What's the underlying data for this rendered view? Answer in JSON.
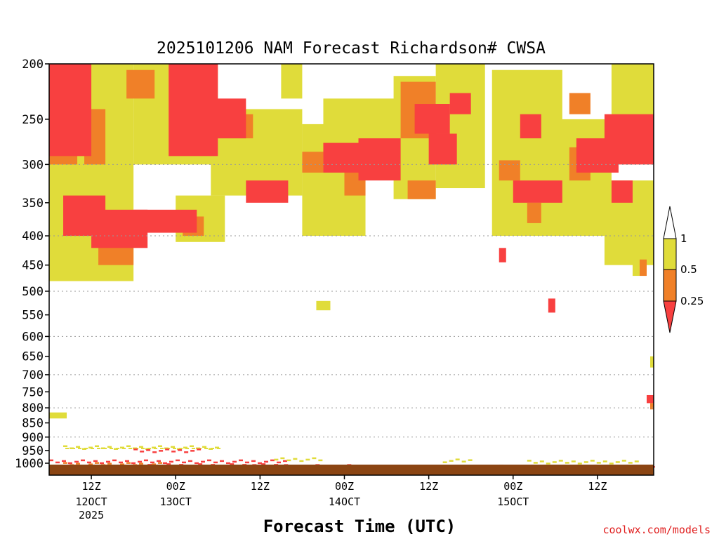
{
  "chart_data": {
    "type": "heatmap",
    "title": "2025101206 NAM Forecast Richardson# CWSA",
    "xlabel": "Forecast Time (UTC)",
    "ylabel": "",
    "y_axis": {
      "scale": "pressure",
      "reversed": true,
      "range": [
        1000,
        200
      ],
      "ticks": [
        200,
        250,
        300,
        350,
        400,
        450,
        500,
        550,
        600,
        650,
        700,
        750,
        800,
        850,
        900,
        950,
        1000
      ]
    },
    "x_ticks": [
      {
        "label": "12Z",
        "sub": [
          "12OCT",
          "2025"
        ],
        "hour": 12
      },
      {
        "label": "00Z",
        "sub": [
          "13OCT"
        ],
        "hour": 24
      },
      {
        "label": "12Z",
        "sub": [],
        "hour": 36
      },
      {
        "label": "00Z",
        "sub": [
          "14OCT"
        ],
        "hour": 48
      },
      {
        "label": "12Z",
        "sub": [],
        "hour": 60
      },
      {
        "label": "00Z",
        "sub": [
          "15OCT"
        ],
        "hour": 72
      },
      {
        "label": "12Z",
        "sub": [],
        "hour": 84
      }
    ],
    "x_range_hours": [
      6,
      92
    ],
    "grid": {
      "horizontal_dotted": [
        300,
        400,
        500,
        600,
        700,
        800,
        900
      ]
    },
    "legend": {
      "placement": "right",
      "labels": [
        "1",
        "0.5",
        "0.25"
      ],
      "bins": [
        {
          "range": "> 1",
          "color": "#ffffff"
        },
        {
          "range": "0.5 – 1",
          "color": "#e0dc3a"
        },
        {
          "range": "0.25 – 0.5",
          "color": "#f08028"
        },
        {
          "range": "< 0.25",
          "color": "#f84040"
        }
      ]
    },
    "colors": {
      "low": "#f84040",
      "mid": "#f08028",
      "high": "#e0dc3a",
      "ground": "#8b4513"
    },
    "regions": [
      {
        "bin": "high",
        "t": [
          6,
          18
        ],
        "p": [
          200,
          480
        ]
      },
      {
        "bin": "high",
        "t": [
          18,
          30
        ],
        "p": [
          200,
          300
        ]
      },
      {
        "bin": "high",
        "t": [
          24,
          31
        ],
        "p": [
          340,
          410
        ]
      },
      {
        "bin": "high",
        "t": [
          29,
          42
        ],
        "p": [
          240,
          340
        ]
      },
      {
        "bin": "high",
        "t": [
          39,
          42
        ],
        "p": [
          200,
          230
        ]
      },
      {
        "bin": "high",
        "t": [
          42,
          51
        ],
        "p": [
          255,
          400
        ]
      },
      {
        "bin": "high",
        "t": [
          45,
          56
        ],
        "p": [
          230,
          310
        ]
      },
      {
        "bin": "high",
        "t": [
          55,
          61
        ],
        "p": [
          210,
          345
        ]
      },
      {
        "bin": "high",
        "t": [
          61,
          68
        ],
        "p": [
          200,
          330
        ]
      },
      {
        "bin": "high",
        "t": [
          69,
          79
        ],
        "p": [
          205,
          400
        ]
      },
      {
        "bin": "high",
        "t": [
          78,
          86
        ],
        "p": [
          250,
          400
        ]
      },
      {
        "bin": "high",
        "t": [
          86,
          92
        ],
        "p": [
          200,
          250
        ]
      },
      {
        "bin": "high",
        "t": [
          85,
          92
        ],
        "p": [
          320,
          450
        ]
      },
      {
        "bin": "mid",
        "t": [
          6,
          10
        ],
        "p": [
          225,
          300
        ]
      },
      {
        "bin": "mid",
        "t": [
          11,
          14
        ],
        "p": [
          240,
          300
        ]
      },
      {
        "bin": "mid",
        "t": [
          13,
          18
        ],
        "p": [
          380,
          450
        ]
      },
      {
        "bin": "mid",
        "t": [
          17,
          21
        ],
        "p": [
          205,
          230
        ]
      },
      {
        "bin": "mid",
        "t": [
          25,
          28
        ],
        "p": [
          370,
          400
        ]
      },
      {
        "bin": "mid",
        "t": [
          30,
          35
        ],
        "p": [
          245,
          270
        ]
      },
      {
        "bin": "mid",
        "t": [
          42,
          45
        ],
        "p": [
          285,
          310
        ]
      },
      {
        "bin": "mid",
        "t": [
          48,
          51
        ],
        "p": [
          300,
          340
        ]
      },
      {
        "bin": "mid",
        "t": [
          56,
          61
        ],
        "p": [
          215,
          270
        ]
      },
      {
        "bin": "mid",
        "t": [
          57,
          61
        ],
        "p": [
          320,
          345
        ]
      },
      {
        "bin": "mid",
        "t": [
          70,
          73
        ],
        "p": [
          295,
          320
        ]
      },
      {
        "bin": "mid",
        "t": [
          74,
          76
        ],
        "p": [
          350,
          380
        ]
      },
      {
        "bin": "mid",
        "t": [
          80,
          83
        ],
        "p": [
          225,
          245
        ]
      },
      {
        "bin": "mid",
        "t": [
          80,
          83
        ],
        "p": [
          280,
          320
        ]
      },
      {
        "bin": "mid",
        "t": [
          88,
          90
        ],
        "p": [
          250,
          275
        ]
      },
      {
        "bin": "low",
        "t": [
          6,
          12
        ],
        "p": [
          200,
          290
        ]
      },
      {
        "bin": "low",
        "t": [
          8,
          14
        ],
        "p": [
          340,
          400
        ]
      },
      {
        "bin": "low",
        "t": [
          12,
          20
        ],
        "p": [
          360,
          420
        ]
      },
      {
        "bin": "low",
        "t": [
          18,
          27
        ],
        "p": [
          360,
          395
        ]
      },
      {
        "bin": "low",
        "t": [
          23,
          30
        ],
        "p": [
          200,
          290
        ]
      },
      {
        "bin": "low",
        "t": [
          28,
          34
        ],
        "p": [
          230,
          270
        ]
      },
      {
        "bin": "low",
        "t": [
          34,
          40
        ],
        "p": [
          320,
          350
        ]
      },
      {
        "bin": "low",
        "t": [
          45,
          51
        ],
        "p": [
          275,
          310
        ]
      },
      {
        "bin": "low",
        "t": [
          50,
          56
        ],
        "p": [
          270,
          320
        ]
      },
      {
        "bin": "low",
        "t": [
          58,
          63
        ],
        "p": [
          235,
          265
        ]
      },
      {
        "bin": "low",
        "t": [
          60,
          64
        ],
        "p": [
          265,
          300
        ]
      },
      {
        "bin": "low",
        "t": [
          63,
          66
        ],
        "p": [
          225,
          245
        ]
      },
      {
        "bin": "low",
        "t": [
          72,
          79
        ],
        "p": [
          320,
          350
        ]
      },
      {
        "bin": "low",
        "t": [
          73,
          76
        ],
        "p": [
          245,
          270
        ]
      },
      {
        "bin": "low",
        "t": [
          81,
          87
        ],
        "p": [
          270,
          310
        ]
      },
      {
        "bin": "low",
        "t": [
          85,
          92
        ],
        "p": [
          245,
          300
        ]
      },
      {
        "bin": "low",
        "t": [
          86,
          89
        ],
        "p": [
          320,
          350
        ]
      },
      {
        "bin": "high",
        "t": [
          44,
          46
        ],
        "p": [
          520,
          540
        ]
      },
      {
        "bin": "low",
        "t": [
          77,
          78
        ],
        "p": [
          515,
          545
        ]
      },
      {
        "bin": "low",
        "t": [
          70,
          71
        ],
        "p": [
          420,
          445
        ]
      },
      {
        "bin": "high",
        "t": [
          89,
          90
        ],
        "p": [
          440,
          470
        ]
      },
      {
        "bin": "mid",
        "t": [
          90,
          91
        ],
        "p": [
          440,
          470
        ]
      },
      {
        "bin": "high",
        "t": [
          91.5,
          92
        ],
        "p": [
          650,
          680
        ]
      },
      {
        "bin": "low",
        "t": [
          91,
          92
        ],
        "p": [
          760,
          785
        ]
      },
      {
        "bin": "mid",
        "t": [
          91.5,
          92
        ],
        "p": [
          785,
          805
        ]
      },
      {
        "bin": "high",
        "t": [
          6,
          8.5
        ],
        "p": [
          815,
          835
        ]
      }
    ],
    "streaks": [
      {
        "bin": "high",
        "t": [
          8,
          30
        ],
        "p": [
          930,
          945
        ]
      },
      {
        "bin": "low",
        "t": [
          18,
          27
        ],
        "p": [
          940,
          950
        ]
      },
      {
        "bin": "low",
        "t": [
          6,
          40
        ],
        "p": [
          985,
          995
        ]
      },
      {
        "bin": "mid",
        "t": [
          8,
          22
        ],
        "p": [
          995,
          1005
        ]
      },
      {
        "bin": "low",
        "t": [
          20,
          38
        ],
        "p": [
          1000,
          1008
        ]
      },
      {
        "bin": "low",
        "t": [
          34,
          50
        ],
        "p": [
          1003,
          1012
        ]
      },
      {
        "bin": "mid",
        "t": [
          50,
          70
        ],
        "p": [
          1008,
          1014
        ]
      },
      {
        "bin": "low",
        "t": [
          70,
          92
        ],
        "p": [
          1005,
          1012
        ]
      },
      {
        "bin": "high",
        "t": [
          38,
          45
        ],
        "p": [
          975,
          985
        ]
      },
      {
        "bin": "high",
        "t": [
          62,
          66
        ],
        "p": [
          980,
          988
        ]
      },
      {
        "bin": "high",
        "t": [
          74,
          90
        ],
        "p": [
          985,
          992
        ]
      }
    ]
  },
  "credit": "coolwx.com/models"
}
